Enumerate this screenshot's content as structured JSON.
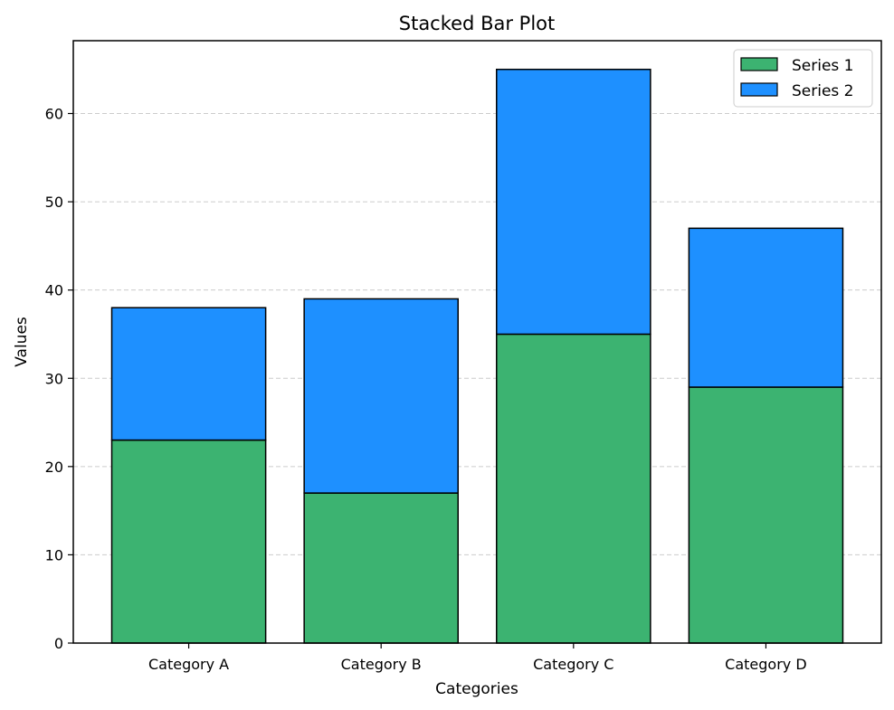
{
  "chart_data": {
    "type": "bar",
    "stacked": true,
    "title": "Stacked Bar Plot",
    "xlabel": "Categories",
    "ylabel": "Values",
    "categories": [
      "Category A",
      "Category B",
      "Category C",
      "Category D"
    ],
    "series": [
      {
        "name": "Series 1",
        "values": [
          23,
          17,
          35,
          29
        ],
        "color": "#3cb371"
      },
      {
        "name": "Series 2",
        "values": [
          15,
          22,
          30,
          18
        ],
        "color": "#1e90ff"
      }
    ],
    "ylim": [
      0,
      68.25
    ],
    "yticks": [
      0,
      10,
      20,
      30,
      40,
      50,
      60
    ],
    "grid": {
      "axis": "y",
      "style": "dashed",
      "color": "#cccccc"
    },
    "legend": {
      "position": "top-right"
    },
    "edge_color": "#000000"
  }
}
